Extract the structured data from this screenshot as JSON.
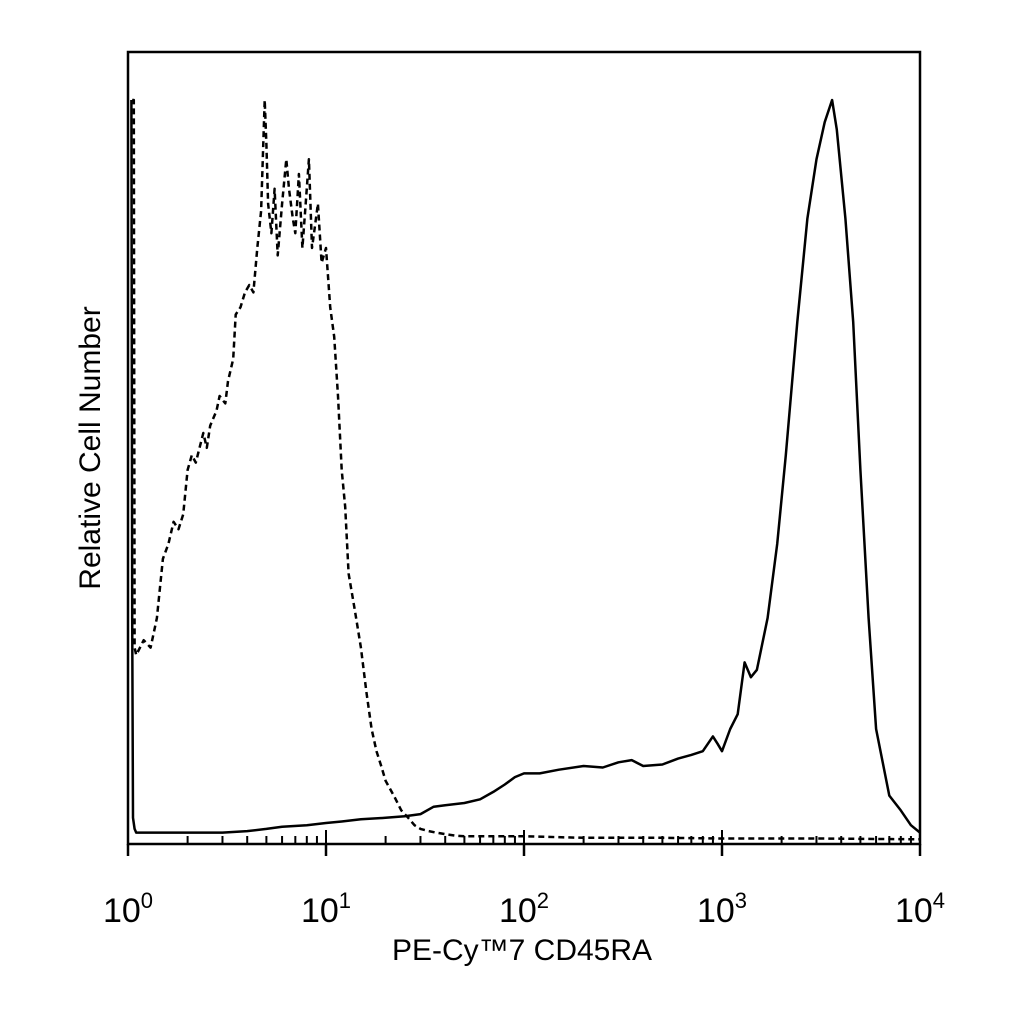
{
  "chart_data": {
    "type": "line",
    "title": "",
    "xlabel": "PE-Cy™7 CD45RA",
    "ylabel": "Relative Cell Number",
    "x_scale": "log",
    "xlim": [
      1,
      10000
    ],
    "ylim": [
      0,
      100
    ],
    "grid": false,
    "legend": "none",
    "x_ticks": [
      {
        "base": "10",
        "exp": "0",
        "value": 1
      },
      {
        "base": "10",
        "exp": "1",
        "value": 10
      },
      {
        "base": "10",
        "exp": "2",
        "value": 100
      },
      {
        "base": "10",
        "exp": "3",
        "value": 1000
      },
      {
        "base": "10",
        "exp": "4",
        "value": 10000
      }
    ],
    "series": [
      {
        "style": "dashed",
        "color": "#000000",
        "x": [
          1.05,
          1.06,
          1.07,
          1.08,
          1.1,
          1.15,
          1.2,
          1.3,
          1.4,
          1.5,
          1.6,
          1.7,
          1.8,
          1.9,
          2.0,
          2.1,
          2.2,
          2.4,
          2.5,
          2.6,
          2.8,
          2.9,
          3.1,
          3.2,
          3.4,
          3.5,
          3.7,
          3.9,
          4.1,
          4.3,
          4.5,
          4.7,
          4.9,
          5.0,
          5.1,
          5.3,
          5.5,
          5.7,
          6.0,
          6.3,
          6.5,
          6.8,
          7.0,
          7.3,
          7.6,
          7.9,
          8.2,
          8.5,
          8.8,
          9.1,
          9.5,
          10.0,
          10.5,
          11.0,
          11.5,
          12.0,
          12.5,
          13.0,
          14.0,
          15.0,
          16.0,
          17.0,
          18.0,
          19.0,
          20.0,
          22.0,
          24.0,
          26.0,
          28.0,
          30.0,
          33.0,
          36.0,
          40.0,
          45.0,
          50.0,
          60.0,
          80.0,
          100.0,
          200.0,
          500.0,
          1000.0,
          3000.0,
          10000.0
        ],
        "y": [
          100,
          100,
          100,
          26,
          25,
          26,
          27,
          26,
          30,
          38,
          40,
          43,
          42,
          44,
          50,
          52,
          51,
          55,
          53,
          56,
          58,
          60,
          59,
          62,
          65,
          71,
          72,
          74,
          75,
          74,
          80,
          85,
          100,
          94,
          86,
          82,
          88,
          79,
          86,
          92,
          88,
          84,
          82,
          90,
          80,
          86,
          92,
          80,
          83,
          86,
          78,
          80,
          72,
          68,
          60,
          50,
          45,
          36,
          31,
          26,
          20,
          15,
          12,
          10,
          8,
          6,
          4,
          3,
          2,
          1.5,
          1.2,
          1.0,
          0.8,
          0.6,
          0.5,
          0.5,
          0.5,
          0.5,
          0.3,
          0.3,
          0.2,
          0.2,
          0.1
        ]
      },
      {
        "style": "solid",
        "color": "#000000",
        "x": [
          1.04,
          1.05,
          1.06,
          1.08,
          1.1,
          1.2,
          1.5,
          2,
          3,
          4,
          5,
          6,
          8,
          10,
          12,
          15,
          20,
          25,
          30,
          35,
          40,
          50,
          60,
          70,
          80,
          90,
          100,
          120,
          150,
          200,
          250,
          300,
          350,
          400,
          500,
          600,
          700,
          800,
          900,
          950,
          1000,
          1100,
          1200,
          1300,
          1400,
          1500,
          1700,
          1900,
          2100,
          2400,
          2700,
          3000,
          3300,
          3600,
          3800,
          4200,
          4600,
          5000,
          5500,
          6000,
          7000,
          8000,
          9000,
          10000
        ],
        "y": [
          100,
          30,
          3,
          1.5,
          1,
          1,
          1,
          1,
          1,
          1.2,
          1.5,
          1.8,
          2,
          2.3,
          2.5,
          2.8,
          3,
          3.2,
          3.5,
          4.5,
          4.7,
          5,
          5.5,
          6.5,
          7.5,
          8.5,
          9,
          9,
          9.5,
          10,
          9.8,
          10.5,
          10.8,
          10,
          10.2,
          11,
          11.5,
          12,
          14,
          13,
          12,
          15,
          17,
          24,
          22,
          23,
          30,
          40,
          52,
          70,
          84,
          92,
          97,
          100,
          96,
          84,
          70,
          50,
          30,
          15,
          6,
          4,
          2,
          1
        ]
      }
    ]
  }
}
